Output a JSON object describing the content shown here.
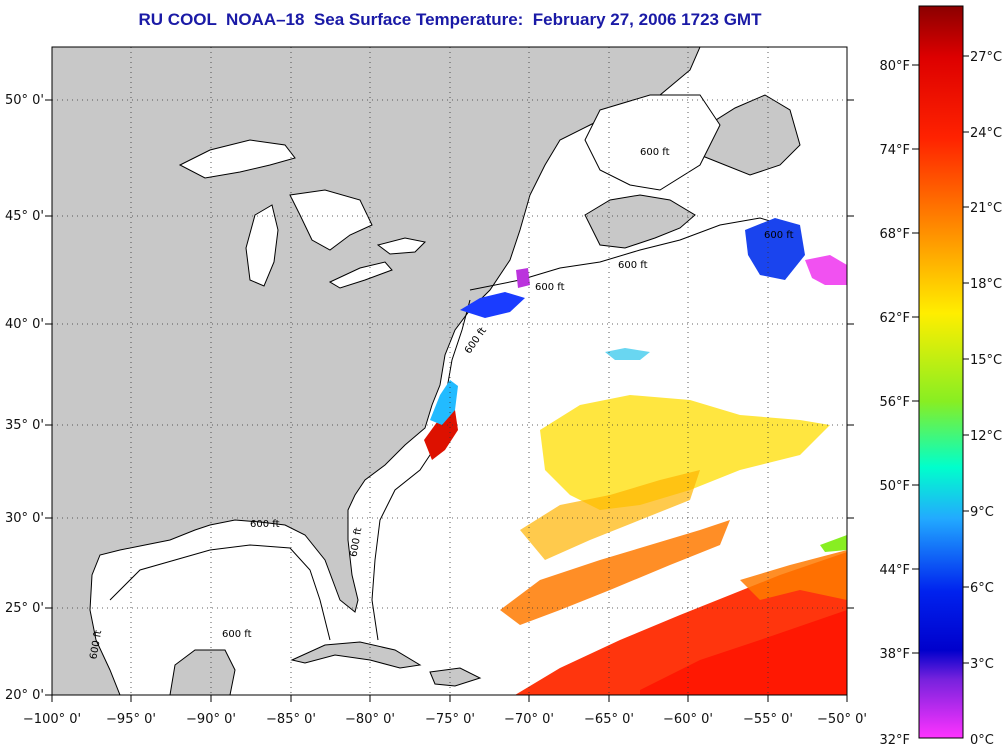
{
  "title": "RU COOL  NOAA–18  Sea Surface Temperature:  February 27, 2006 1723 GMT",
  "map": {
    "lon_range": [
      -100,
      -50
    ],
    "lat_range": [
      20,
      52.3
    ],
    "lon_ticks": [
      "−100° 0'",
      "−95° 0'",
      "−90° 0'",
      "−85° 0'",
      "−80° 0'",
      "−75° 0'",
      "−70° 0'",
      "−65° 0'",
      "−60° 0'",
      "−55° 0'",
      "−50° 0'"
    ],
    "lat_ticks": [
      "20° 0'",
      "25° 0'",
      "30° 0'",
      "35° 0'",
      "40° 0'",
      "45° 0'",
      "50° 0'"
    ],
    "grid": "dotted",
    "land_color": "#c8c8c8",
    "ocean_color": "#ffffff",
    "isobath_labels": [
      "600 ft",
      "600 ft",
      "600 ft",
      "600 ft",
      "600 ft",
      "600 ft",
      "600 ft",
      "600 ft",
      "600 ft"
    ]
  },
  "colorbar": {
    "fahrenheit_labels": [
      "80°F",
      "74°F",
      "68°F",
      "62°F",
      "56°F",
      "50°F",
      "44°F",
      "38°F",
      "32°F"
    ],
    "celsius_labels": [
      "27°C",
      "24°C",
      "21°C",
      "18°C",
      "15°C",
      "12°C",
      "9°C",
      "6°C",
      "3°C",
      "0°C"
    ],
    "colors": [
      "#8b0000",
      "#ff2200",
      "#ff8800",
      "#ffee00",
      "#88ee22",
      "#00ffdd",
      "#2299ff",
      "#0022ee",
      "#8822dd",
      "#ff33ff"
    ]
  }
}
